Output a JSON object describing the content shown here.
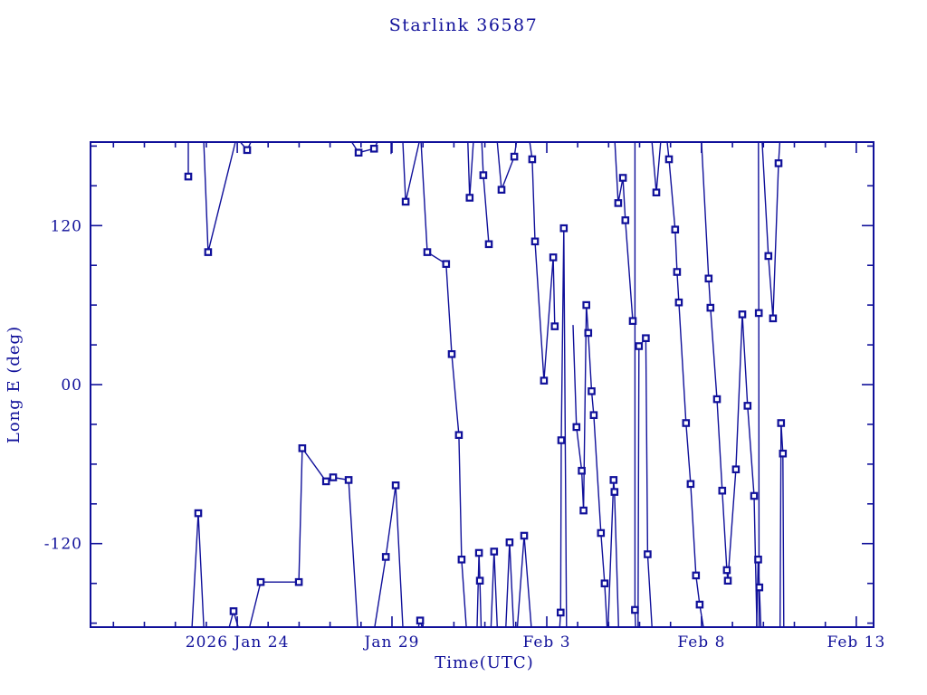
{
  "page": {
    "background_color": "#ffffff",
    "accent_color": "#10109a"
  },
  "chart_data": {
    "type": "line",
    "title": "Starlink 36587",
    "xlabel": "Time(UTC)",
    "ylabel": "Long E (deg)",
    "legend": "none",
    "grid": false,
    "marker": "open-square",
    "line_color": "#10109a",
    "marker_edge_color": "#10109a",
    "marker_fill_color": "#ffffff",
    "x_axis": {
      "unit": "days relative to 2026 Jan 24",
      "range": [
        -4.74,
        20.56
      ],
      "major_ticks": [
        {
          "t": 0,
          "label": "2026 Jan 24"
        },
        {
          "t": 5,
          "label": "Jan 29"
        },
        {
          "t": 10,
          "label": "Feb 3"
        },
        {
          "t": 15,
          "label": "Feb 8"
        },
        {
          "t": 20,
          "label": "Feb 13"
        }
      ],
      "minor_tick_step_days": 1
    },
    "y_axis": {
      "range": [
        -183,
        183
      ],
      "major_ticks": [
        {
          "v": 120,
          "label": "120"
        },
        {
          "v": 0,
          "label": "00"
        },
        {
          "v": -120,
          "label": "-120"
        }
      ],
      "minor_tick_step_deg": 30
    },
    "series_name": "satellite-subpoint-longitude",
    "point_format": "[days_from_Jan24, longitude_deg, marker_flag]",
    "segments": [
      {
        "pts": [
          [
            -1.58,
            183,
            0
          ],
          [
            -1.58,
            157,
            1
          ]
        ]
      },
      {
        "pts": [
          [
            -1.08,
            183,
            0
          ],
          [
            -0.94,
            100,
            1
          ],
          [
            -0.06,
            183,
            0
          ]
        ]
      },
      {
        "pts": [
          [
            0.1,
            183,
            0
          ],
          [
            0.32,
            177,
            1
          ],
          [
            0.44,
            183,
            0
          ]
        ]
      },
      {
        "pts": [
          [
            -1.46,
            -183,
            0
          ],
          [
            -1.26,
            -97,
            1
          ],
          [
            -1.08,
            -183,
            0
          ]
        ]
      },
      {
        "pts": [
          [
            -0.26,
            -183,
            0
          ],
          [
            -0.12,
            -171,
            1
          ],
          [
            0.03,
            -183,
            0
          ]
        ]
      },
      {
        "pts": [
          [
            0.4,
            -183,
            0
          ],
          [
            0.76,
            -149,
            1
          ],
          [
            1.99,
            -149,
            1
          ],
          [
            2.1,
            -48,
            1
          ],
          [
            2.87,
            -73,
            1
          ],
          [
            3.1,
            -70,
            1
          ],
          [
            3.6,
            -72,
            1
          ],
          [
            3.89,
            -183,
            0
          ]
        ]
      },
      {
        "pts": [
          [
            3.7,
            183,
            0
          ],
          [
            3.92,
            175,
            1
          ],
          [
            4.42,
            178,
            1
          ],
          [
            4.53,
            183,
            0
          ]
        ]
      },
      {
        "pts": [
          [
            4.97,
            183,
            0
          ],
          [
            4.97,
            174,
            0
          ]
        ]
      },
      {
        "pts": [
          [
            5.35,
            183,
            0
          ],
          [
            5.44,
            138,
            1
          ],
          [
            5.88,
            183,
            0
          ]
        ]
      },
      {
        "pts": [
          [
            4.44,
            -183,
            0
          ],
          [
            4.8,
            -130,
            1
          ],
          [
            5.12,
            -76,
            1
          ],
          [
            5.35,
            -183,
            0
          ]
        ]
      },
      {
        "pts": [
          [
            5.85,
            -183,
            0
          ],
          [
            5.91,
            -178,
            1
          ],
          [
            5.97,
            -183,
            0
          ]
        ]
      },
      {
        "pts": [
          [
            5.94,
            183,
            0
          ],
          [
            6.14,
            100,
            1
          ],
          [
            6.75,
            91,
            1
          ],
          [
            6.93,
            23,
            1
          ],
          [
            7.16,
            -38,
            1
          ],
          [
            7.25,
            -132,
            1
          ],
          [
            7.4,
            -183,
            0
          ]
        ]
      },
      {
        "pts": [
          [
            7.45,
            183,
            0
          ],
          [
            7.51,
            141,
            1
          ],
          [
            7.63,
            183,
            0
          ]
        ]
      },
      {
        "pts": [
          [
            7.9,
            183,
            0
          ],
          [
            7.95,
            158,
            1
          ],
          [
            8.13,
            106,
            1
          ]
        ]
      },
      {
        "pts": [
          [
            7.75,
            -183,
            0
          ],
          [
            7.81,
            -127,
            1
          ],
          [
            7.84,
            -148,
            1
          ],
          [
            7.88,
            -183,
            0
          ]
        ]
      },
      {
        "pts": [
          [
            8.2,
            -183,
            0
          ],
          [
            8.3,
            -126,
            1
          ],
          [
            8.4,
            -183,
            0
          ]
        ]
      },
      {
        "pts": [
          [
            8.4,
            183,
            0
          ],
          [
            8.54,
            147,
            1
          ],
          [
            8.95,
            172,
            1
          ],
          [
            9.02,
            183,
            0
          ]
        ]
      },
      {
        "pts": [
          [
            8.68,
            -183,
            0
          ],
          [
            8.8,
            -119,
            1
          ],
          [
            8.93,
            -183,
            0
          ]
        ]
      },
      {
        "pts": [
          [
            9.05,
            -183,
            0
          ],
          [
            9.27,
            -114,
            1
          ],
          [
            9.5,
            -183,
            0
          ]
        ]
      },
      {
        "pts": [
          [
            9.45,
            183,
            0
          ],
          [
            9.53,
            170,
            1
          ],
          [
            9.62,
            108,
            1
          ],
          [
            9.91,
            3,
            1
          ],
          [
            10.21,
            96,
            1
          ],
          [
            10.26,
            44,
            1
          ]
        ]
      },
      {
        "pts": [
          [
            10.42,
            -183,
            0
          ],
          [
            10.45,
            -172,
            1
          ],
          [
            10.47,
            -42,
            1
          ],
          [
            10.55,
            118,
            1
          ],
          [
            10.64,
            -183,
            0
          ]
        ]
      },
      {
        "pts": [
          [
            10.85,
            45,
            0
          ],
          [
            10.96,
            -32,
            1
          ],
          [
            11.13,
            -65,
            1
          ],
          [
            11.19,
            -95,
            1
          ],
          [
            11.28,
            60,
            1
          ],
          [
            11.34,
            39,
            1
          ],
          [
            11.45,
            -5,
            1
          ],
          [
            11.52,
            -23,
            1
          ],
          [
            11.75,
            -112,
            1
          ],
          [
            11.87,
            -150,
            1
          ],
          [
            11.95,
            -183,
            0
          ]
        ]
      },
      {
        "pts": [
          [
            11.98,
            -183,
            0
          ],
          [
            12.16,
            -72,
            1
          ],
          [
            12.19,
            -81,
            1
          ],
          [
            12.32,
            -183,
            0
          ]
        ]
      },
      {
        "pts": [
          [
            12.2,
            183,
            0
          ],
          [
            12.31,
            137,
            1
          ],
          [
            12.46,
            156,
            1
          ],
          [
            12.54,
            124,
            1
          ],
          [
            12.78,
            48,
            1
          ]
        ]
      },
      {
        "pts": [
          [
            12.85,
            183,
            0
          ],
          [
            12.85,
            -170,
            1
          ],
          [
            12.87,
            -183,
            0
          ]
        ]
      },
      {
        "pts": [
          [
            12.95,
            -183,
            0
          ],
          [
            12.98,
            29,
            1
          ],
          [
            13.2,
            35,
            1
          ],
          [
            13.26,
            -128,
            1
          ],
          [
            13.4,
            -183,
            0
          ]
        ]
      },
      {
        "pts": [
          [
            13.4,
            183,
            0
          ],
          [
            13.54,
            145,
            1
          ],
          [
            13.68,
            183,
            0
          ]
        ]
      },
      {
        "pts": [
          [
            13.89,
            183,
            0
          ],
          [
            13.95,
            170,
            1
          ],
          [
            14.15,
            117,
            1
          ],
          [
            14.21,
            85,
            1
          ],
          [
            14.27,
            62,
            1
          ],
          [
            14.5,
            -29,
            1
          ],
          [
            14.65,
            -75,
            1
          ],
          [
            14.82,
            -144,
            1
          ],
          [
            14.94,
            -166,
            1
          ],
          [
            15.06,
            -183,
            0
          ]
        ]
      },
      {
        "pts": [
          [
            15.0,
            183,
            0
          ],
          [
            15.23,
            80,
            1
          ],
          [
            15.29,
            58,
            1
          ],
          [
            15.5,
            -11,
            1
          ],
          [
            15.67,
            -80,
            1
          ],
          [
            15.82,
            -140,
            1
          ],
          [
            15.85,
            -148,
            1
          ],
          [
            16.11,
            -64,
            1
          ],
          [
            16.32,
            53,
            1
          ],
          [
            16.49,
            -16,
            1
          ],
          [
            16.7,
            -84,
            1
          ],
          [
            16.79,
            -183,
            0
          ]
        ]
      },
      {
        "pts": [
          [
            16.84,
            183,
            0
          ],
          [
            16.85,
            54,
            1
          ],
          [
            16.86,
            -183,
            0
          ]
        ]
      },
      {
        "pts": [
          [
            16.78,
            -183,
            0
          ],
          [
            16.83,
            -132,
            1
          ],
          [
            16.87,
            -153,
            1
          ],
          [
            16.92,
            -183,
            0
          ]
        ]
      },
      {
        "pts": [
          [
            16.96,
            183,
            0
          ],
          [
            17.16,
            97,
            1
          ],
          [
            17.31,
            50,
            1
          ],
          [
            17.49,
            167,
            1
          ],
          [
            17.53,
            183,
            0
          ]
        ]
      },
      {
        "pts": [
          [
            17.54,
            -183,
            0
          ],
          [
            17.57,
            -29,
            1
          ],
          [
            17.63,
            -52,
            1
          ],
          [
            17.66,
            -183,
            0
          ]
        ]
      }
    ]
  }
}
